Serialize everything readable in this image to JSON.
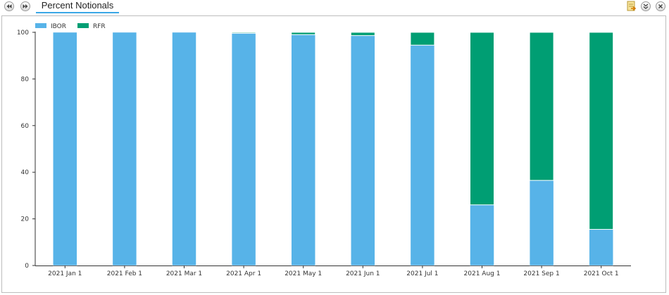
{
  "header": {
    "title": "Percent Notionals",
    "icons": [
      "rewind-icon",
      "fast-forward-icon",
      "export-icon",
      "collapse-icon",
      "close-icon"
    ]
  },
  "chart_data": {
    "type": "bar",
    "stacked": true,
    "categories": [
      "2021 Jan 1",
      "2021 Feb 1",
      "2021 Mar 1",
      "2021 Apr 1",
      "2021 May 1",
      "2021 Jun 1",
      "2021 Jul 1",
      "2021 Aug 1",
      "2021 Sep 1",
      "2021 Oct 1"
    ],
    "series": [
      {
        "name": "IBOR",
        "color": "#57b3e8",
        "values": [
          100,
          100,
          100,
          99.6,
          99,
          98.6,
          94.5,
          26,
          36.5,
          15.5
        ]
      },
      {
        "name": "RFR",
        "color": "#009e73",
        "values": [
          0,
          0,
          0,
          0.4,
          1,
          1.4,
          5.5,
          74,
          63.5,
          84.5
        ]
      }
    ],
    "yticks": [
      0,
      20,
      40,
      60,
      80,
      100
    ],
    "ylim": [
      0,
      100
    ],
    "legend_position": "top-left",
    "grid": false
  }
}
